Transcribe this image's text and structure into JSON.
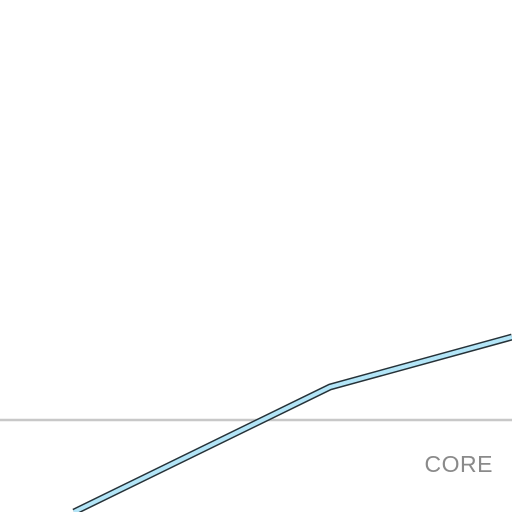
{
  "map": {
    "place_label": "CORE",
    "colors": {
      "background": "#ffffff",
      "boundary_line": "#c8c8c8",
      "road_fill": "#b3e5f7",
      "road_casing": "#263238",
      "label": "#8a8a8a"
    }
  }
}
